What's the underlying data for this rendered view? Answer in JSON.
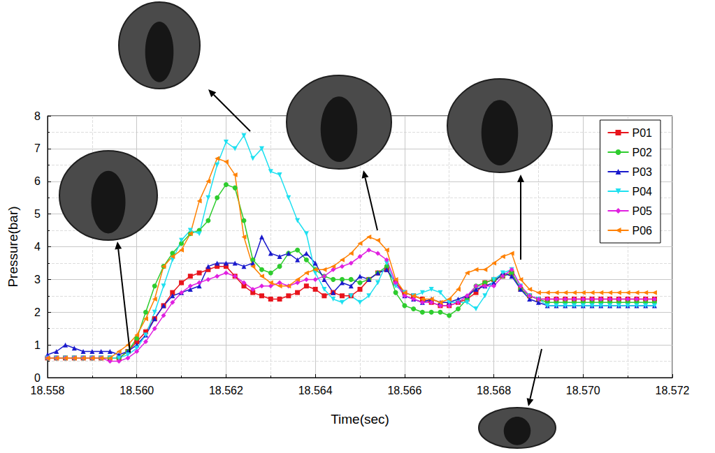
{
  "chart_data": {
    "type": "line",
    "xlabel": "Time(sec)",
    "ylabel": "Pressure(bar)",
    "xlim": [
      18.558,
      18.572
    ],
    "ylim": [
      0,
      8
    ],
    "xticks": [
      {
        "value": 18.558,
        "label": "18.558"
      },
      {
        "value": 18.56,
        "label": "18.560"
      },
      {
        "value": 18.562,
        "label": "18.562"
      },
      {
        "value": 18.564,
        "label": "18.564"
      },
      {
        "value": 18.566,
        "label": "18.566"
      },
      {
        "value": 18.568,
        "label": "18.568"
      },
      {
        "value": 18.57,
        "label": "18.570"
      },
      {
        "value": 18.572,
        "label": "18.572"
      }
    ],
    "yticks": [
      0,
      1,
      2,
      3,
      4,
      5,
      6,
      7,
      8
    ],
    "grid": true,
    "legend": "upper right",
    "x": [
      18.558,
      18.5582,
      18.5584,
      18.5586,
      18.5588,
      18.559,
      18.5592,
      18.5594,
      18.5596,
      18.5598,
      18.56,
      18.5602,
      18.5604,
      18.5606,
      18.5608,
      18.561,
      18.5612,
      18.5614,
      18.5616,
      18.5618,
      18.562,
      18.5622,
      18.5624,
      18.5626,
      18.5628,
      18.563,
      18.5632,
      18.5634,
      18.5636,
      18.5638,
      18.564,
      18.5642,
      18.5644,
      18.5646,
      18.5648,
      18.565,
      18.5652,
      18.5654,
      18.5656,
      18.5658,
      18.566,
      18.5662,
      18.5664,
      18.5666,
      18.5668,
      18.567,
      18.5672,
      18.5674,
      18.5676,
      18.5678,
      18.568,
      18.5682,
      18.5684,
      18.5686,
      18.5688,
      18.569,
      18.5692,
      18.5694,
      18.5696,
      18.5698,
      18.57,
      18.5702,
      18.5704,
      18.5706,
      18.5708,
      18.571,
      18.5712,
      18.5714,
      18.5716
    ],
    "series": [
      {
        "name": "P01",
        "color": "#e8141c",
        "marker": "square",
        "values": [
          0.6,
          0.6,
          0.6,
          0.6,
          0.6,
          0.6,
          0.6,
          0.6,
          0.6,
          0.8,
          1.1,
          1.4,
          1.8,
          2.2,
          2.6,
          2.9,
          3.1,
          3.2,
          3.3,
          3.4,
          3.4,
          3.1,
          2.8,
          2.6,
          2.5,
          2.4,
          2.4,
          2.5,
          2.6,
          2.8,
          2.7,
          2.5,
          2.6,
          2.5,
          2.5,
          2.7,
          3.0,
          3.2,
          3.3,
          2.9,
          2.6,
          2.5,
          2.4,
          2.3,
          2.2,
          2.2,
          2.3,
          2.4,
          2.6,
          2.9,
          3.0,
          3.1,
          3.2,
          2.7,
          2.5,
          2.4,
          2.4,
          2.4,
          2.4,
          2.4,
          2.4,
          2.4,
          2.4,
          2.4,
          2.4,
          2.4,
          2.4,
          2.4,
          2.4
        ]
      },
      {
        "name": "P02",
        "color": "#2ecc2e",
        "marker": "circle",
        "values": [
          0.6,
          0.6,
          0.6,
          0.6,
          0.6,
          0.6,
          0.6,
          0.6,
          0.6,
          0.8,
          1.2,
          2.0,
          2.8,
          3.4,
          3.8,
          4.1,
          4.4,
          4.5,
          4.8,
          5.5,
          5.9,
          5.8,
          4.8,
          3.6,
          3.3,
          3.2,
          3.4,
          3.8,
          3.9,
          3.6,
          3.3,
          3.1,
          3.0,
          3.0,
          3.0,
          2.9,
          3.0,
          3.2,
          3.4,
          2.6,
          2.2,
          2.1,
          2.0,
          2.0,
          2.0,
          1.9,
          2.1,
          2.4,
          2.8,
          2.9,
          3.0,
          3.1,
          3.2,
          2.7,
          2.5,
          2.4,
          2.3,
          2.3,
          2.3,
          2.3,
          2.3,
          2.3,
          2.3,
          2.3,
          2.3,
          2.3,
          2.3,
          2.3,
          2.3
        ]
      },
      {
        "name": "P03",
        "color": "#1a1acc",
        "marker": "triangle-up",
        "values": [
          0.7,
          0.8,
          1.0,
          0.9,
          0.8,
          0.8,
          0.8,
          0.8,
          0.7,
          0.8,
          1.0,
          1.3,
          1.8,
          2.2,
          2.5,
          2.6,
          2.7,
          2.8,
          3.4,
          3.5,
          3.5,
          3.5,
          3.4,
          3.5,
          4.3,
          3.8,
          3.7,
          3.8,
          3.6,
          3.8,
          3.5,
          3.0,
          2.6,
          2.9,
          2.8,
          3.1,
          3.0,
          3.2,
          3.3,
          2.9,
          2.5,
          2.4,
          2.3,
          2.4,
          2.3,
          2.3,
          2.4,
          2.5,
          2.7,
          2.8,
          2.9,
          3.2,
          3.1,
          2.7,
          2.4,
          2.3,
          2.2,
          2.2,
          2.2,
          2.2,
          2.2,
          2.2,
          2.2,
          2.2,
          2.2,
          2.2,
          2.2,
          2.2,
          2.2
        ]
      },
      {
        "name": "P04",
        "color": "#1ee0f0",
        "marker": "triangle-down",
        "values": [
          0.6,
          0.6,
          0.6,
          0.6,
          0.6,
          0.6,
          0.6,
          0.6,
          0.6,
          0.7,
          0.9,
          1.3,
          2.0,
          2.8,
          3.6,
          4.2,
          4.5,
          4.4,
          5.5,
          6.5,
          7.2,
          7.0,
          7.4,
          6.7,
          7.0,
          6.3,
          6.2,
          5.5,
          4.8,
          4.4,
          3.2,
          2.7,
          2.4,
          2.3,
          2.5,
          2.3,
          2.5,
          2.9,
          3.5,
          2.8,
          2.6,
          2.5,
          2.6,
          2.7,
          2.6,
          2.3,
          2.3,
          2.3,
          2.1,
          2.5,
          3.0,
          3.2,
          3.3,
          2.8,
          2.5,
          2.4,
          2.2,
          2.2,
          2.2,
          2.2,
          2.2,
          2.2,
          2.2,
          2.2,
          2.2,
          2.2,
          2.2,
          2.2,
          2.2
        ]
      },
      {
        "name": "P05",
        "color": "#e020e0",
        "marker": "diamond",
        "values": [
          0.6,
          0.6,
          0.6,
          0.6,
          0.6,
          0.6,
          0.6,
          0.5,
          0.5,
          0.6,
          0.8,
          1.1,
          1.5,
          1.9,
          2.3,
          2.6,
          2.8,
          2.9,
          3.0,
          3.1,
          3.2,
          3.1,
          2.9,
          2.7,
          2.8,
          2.8,
          2.9,
          2.8,
          2.9,
          3.0,
          3.0,
          3.1,
          3.3,
          3.4,
          3.5,
          3.7,
          3.9,
          3.8,
          3.6,
          2.9,
          2.5,
          2.4,
          2.3,
          2.3,
          2.2,
          2.2,
          2.3,
          2.5,
          2.8,
          2.8,
          2.8,
          3.1,
          3.3,
          2.8,
          2.5,
          2.4,
          2.4,
          2.4,
          2.4,
          2.4,
          2.4,
          2.4,
          2.4,
          2.4,
          2.4,
          2.4,
          2.4,
          2.4,
          2.4
        ]
      },
      {
        "name": "P06",
        "color": "#ff8000",
        "marker": "triangle-left",
        "values": [
          0.6,
          0.6,
          0.6,
          0.6,
          0.6,
          0.6,
          0.6,
          0.6,
          0.8,
          1.0,
          1.3,
          1.8,
          2.4,
          3.4,
          3.7,
          3.9,
          4.4,
          5.4,
          6.0,
          6.7,
          6.6,
          6.2,
          4.3,
          3.4,
          3.1,
          2.9,
          2.8,
          2.8,
          3.0,
          3.2,
          3.3,
          3.3,
          3.4,
          3.6,
          3.8,
          4.1,
          4.3,
          4.2,
          3.9,
          3.0,
          2.6,
          2.5,
          2.4,
          2.4,
          2.3,
          2.4,
          2.7,
          3.2,
          3.3,
          3.3,
          3.5,
          3.7,
          3.8,
          3.0,
          2.7,
          2.6,
          2.6,
          2.6,
          2.6,
          2.6,
          2.6,
          2.6,
          2.6,
          2.6,
          2.6,
          2.6,
          2.6,
          2.6,
          2.6
        ]
      }
    ]
  }
}
